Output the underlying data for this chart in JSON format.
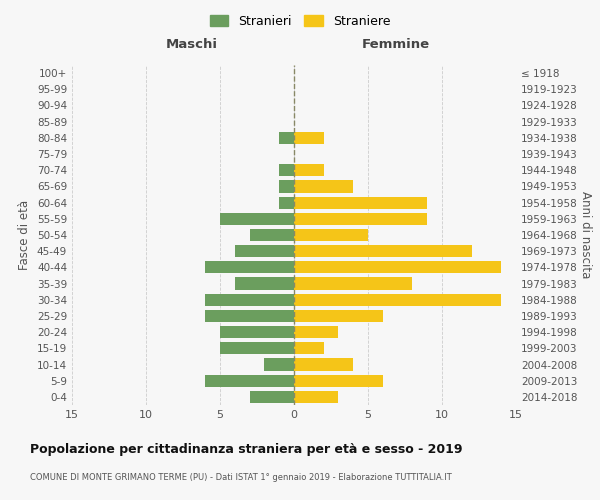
{
  "age_groups": [
    "100+",
    "95-99",
    "90-94",
    "85-89",
    "80-84",
    "75-79",
    "70-74",
    "65-69",
    "60-64",
    "55-59",
    "50-54",
    "45-49",
    "40-44",
    "35-39",
    "30-34",
    "25-29",
    "20-24",
    "15-19",
    "10-14",
    "5-9",
    "0-4"
  ],
  "birth_years": [
    "≤ 1918",
    "1919-1923",
    "1924-1928",
    "1929-1933",
    "1934-1938",
    "1939-1943",
    "1944-1948",
    "1949-1953",
    "1954-1958",
    "1959-1963",
    "1964-1968",
    "1969-1973",
    "1974-1978",
    "1979-1983",
    "1984-1988",
    "1989-1993",
    "1994-1998",
    "1999-2003",
    "2004-2008",
    "2009-2013",
    "2014-2018"
  ],
  "maschi": [
    0,
    0,
    0,
    0,
    1,
    0,
    1,
    1,
    1,
    5,
    3,
    4,
    6,
    4,
    6,
    6,
    5,
    5,
    2,
    6,
    3
  ],
  "femmine": [
    0,
    0,
    0,
    0,
    2,
    0,
    2,
    4,
    9,
    9,
    5,
    12,
    14,
    8,
    14,
    6,
    3,
    2,
    4,
    6,
    3
  ],
  "maschi_color": "#6b9e5e",
  "femmine_color": "#f5c518",
  "background_color": "#f7f7f7",
  "grid_color": "#cccccc",
  "title": "Popolazione per cittadinanza straniera per età e sesso - 2019",
  "subtitle": "COMUNE DI MONTE GRIMANO TERME (PU) - Dati ISTAT 1° gennaio 2019 - Elaborazione TUTTITALIA.IT",
  "xlabel_left": "Maschi",
  "xlabel_right": "Femmine",
  "ylabel_left": "Fasce di età",
  "ylabel_right": "Anni di nascita",
  "legend_maschi": "Stranieri",
  "legend_femmine": "Straniere",
  "xlim": 15,
  "bar_height": 0.75
}
